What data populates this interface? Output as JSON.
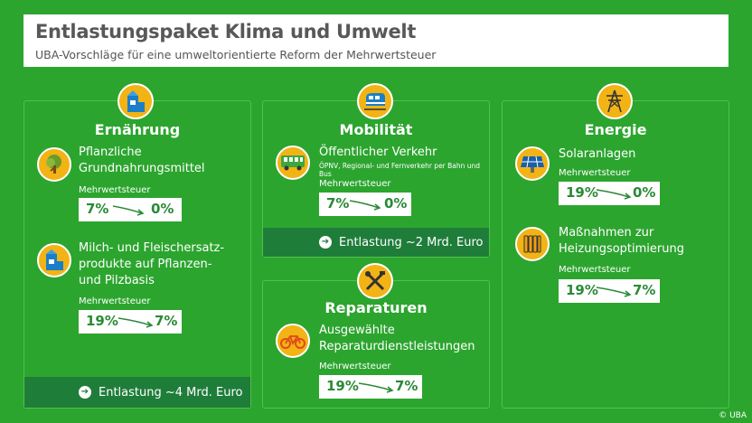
{
  "header": {
    "title": "Entlastungspaket Klima und Umwelt",
    "subtitle": "UBA-Vorschläge für eine umweltorientierte Reform der Mehrwertsteuer"
  },
  "colors": {
    "background": "#2ca52f",
    "panel_footer": "#1f7d3a",
    "badge": "#f2b315",
    "tax_text": "#2a8a36"
  },
  "ernaehrung": {
    "title": "Ernährung",
    "icon": "milk-carton-icon",
    "items": [
      {
        "icon": "tree-icon",
        "label_line1": "Pflanzliche",
        "label_line2": "Grundnahrungsmittel",
        "tax_label": "Mehrwertsteuer",
        "tax_from": "7%",
        "tax_to": "0%"
      },
      {
        "icon": "milk-carton-icon",
        "label_line1": "Milch- und Fleischersatz-",
        "label_line2": "produkte auf Pflanzen-",
        "label_line3": "und Pilzbasis",
        "tax_label": "Mehrwertsteuer",
        "tax_from": "19%",
        "tax_to": "7%"
      }
    ],
    "footer": "Entlastung ~4 Mrd. Euro"
  },
  "mobilitaet": {
    "title": "Mobilität",
    "icon": "train-icon",
    "items": [
      {
        "icon": "bus-icon",
        "label": "Öffentlicher Verkehr",
        "sublabel": "ÖPNV, Regional- und Fernverkehr per Bahn und Bus",
        "tax_label": "Mehrwertsteuer",
        "tax_from": "7%",
        "tax_to": "0%"
      }
    ],
    "footer": "Entlastung ~2 Mrd. Euro"
  },
  "reparaturen": {
    "title": "Reparaturen",
    "icon": "tools-icon",
    "items": [
      {
        "icon": "bicycle-icon",
        "label_line1": "Ausgewählte",
        "label_line2": "Reparaturdienstleistungen",
        "tax_label": "Mehrwertsteuer",
        "tax_from": "19%",
        "tax_to": "7%"
      }
    ]
  },
  "energie": {
    "title": "Energie",
    "icon": "power-tower-icon",
    "items": [
      {
        "icon": "solar-panel-icon",
        "label": "Solaranlagen",
        "tax_label": "Mehrwertsteuer",
        "tax_from": "19%",
        "tax_to": "0%"
      },
      {
        "icon": "radiator-icon",
        "label_line1": "Maßnahmen zur",
        "label_line2": "Heizungsoptimierung",
        "tax_label": "Mehrwertsteuer",
        "tax_from": "19%",
        "tax_to": "7%"
      }
    ]
  },
  "copyright": "© UBA"
}
